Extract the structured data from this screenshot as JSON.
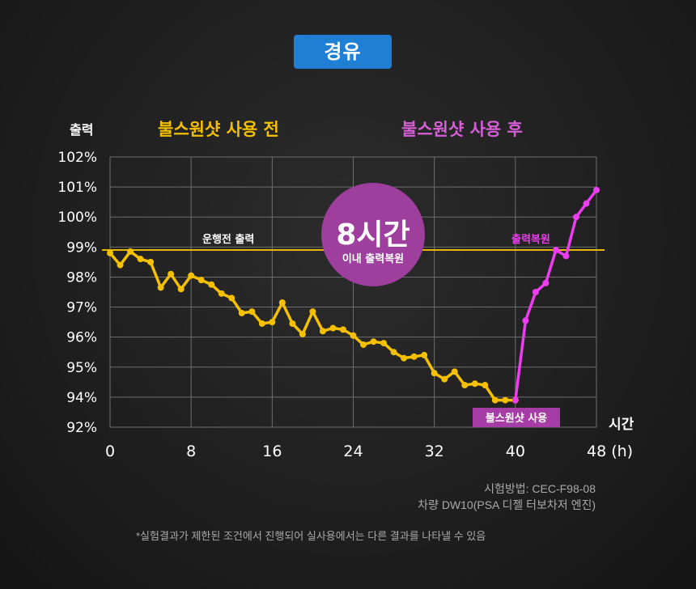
{
  "header": {
    "fuel_label": "경유"
  },
  "notes": {
    "test_method": "시험방법: CEC-F98-08",
    "vehicle": "차량 DW10(PSA 디젤 터보차저 엔진)",
    "disclaimer": "*실험결과가 제한된 조건에서 진행되어 실사용에서는 다른 결과를 나타낼 수 있음"
  },
  "colors": {
    "before": "#f5c000",
    "after": "#ee3cf0",
    "baseline": "#e6b800",
    "bubble": "#9e3f9e",
    "badge": "#1e7fd4"
  },
  "chart_data": {
    "type": "line",
    "ylabel": "출력",
    "xlabel": "시간",
    "x_ticks": [
      "0",
      "8",
      "16",
      "24",
      "32",
      "40",
      "48 (h)"
    ],
    "y_ticks": [
      "92%",
      "94%",
      "95%",
      "96%",
      "97%",
      "98%",
      "99%",
      "100%",
      "101%",
      "102%"
    ],
    "xlim": [
      0,
      48
    ],
    "grid": true,
    "section_labels": {
      "before": "불스원샷 사용 전",
      "after": "불스원샷 사용 후"
    },
    "annotations": {
      "baseline_label": "운행전 출력",
      "baseline_value": 98.9,
      "bubble_big": "8시간",
      "bubble_small": "이내 출력복원",
      "recovered_label": "출력복원",
      "usage_label": "불스원샷 사용"
    },
    "series": [
      {
        "name": "불스원샷 사용 전",
        "x": [
          0,
          1,
          2,
          3,
          4,
          5,
          6,
          7,
          8,
          9,
          10,
          11,
          12,
          13,
          14,
          15,
          16,
          17,
          18,
          19,
          20,
          21,
          22,
          23,
          24,
          25,
          26,
          27,
          28,
          29,
          30,
          31,
          32,
          33,
          34,
          35,
          36,
          37,
          38,
          39,
          40
        ],
        "y": [
          98.8,
          98.4,
          98.85,
          98.6,
          98.5,
          97.65,
          98.1,
          97.6,
          98.05,
          97.9,
          97.75,
          97.45,
          97.3,
          96.8,
          96.85,
          96.45,
          96.5,
          97.15,
          96.45,
          96.1,
          96.85,
          96.2,
          96.3,
          96.25,
          96.05,
          95.75,
          95.85,
          95.8,
          95.5,
          95.3,
          95.35,
          95.4,
          94.8,
          94.6,
          94.85,
          94.4,
          94.45,
          94.4,
          93.8,
          93.8,
          93.8
        ]
      },
      {
        "name": "불스원샷 사용 후",
        "x": [
          40,
          41,
          42,
          43,
          44,
          45,
          46,
          47,
          48
        ],
        "y": [
          93.8,
          96.55,
          97.5,
          97.8,
          98.9,
          98.7,
          100.0,
          100.45,
          100.9
        ]
      }
    ]
  }
}
